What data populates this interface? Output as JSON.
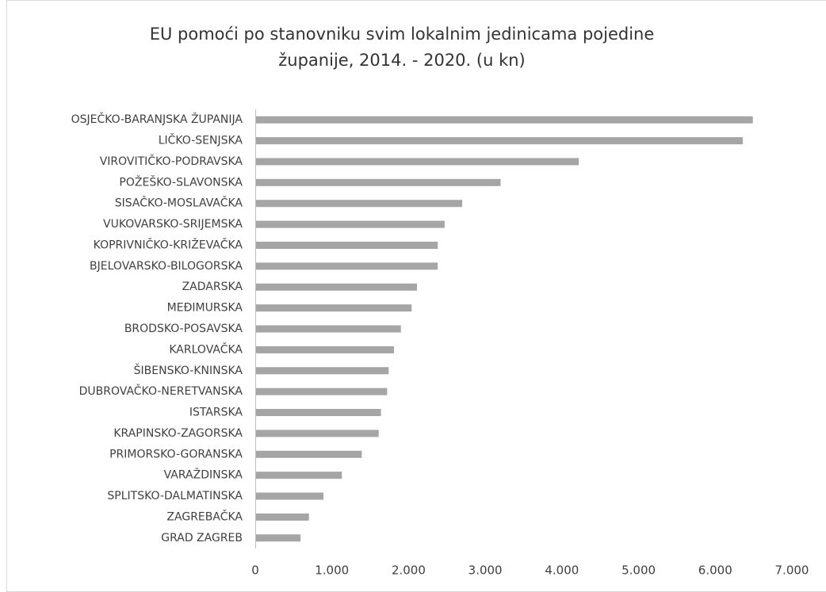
{
  "chart_data": {
    "type": "bar",
    "orientation": "horizontal",
    "title": [
      "EU pomoći po stanovniku svim lokalnim jedinicama pojedine",
      "županije, 2014. - 2020. (u kn)"
    ],
    "categories": [
      "OSJEČKO-BARANJSKA ŽUPANIJA",
      "LIČKO-SENJSKA",
      "VIROVITIČKO-PODRAVSKA",
      "POŽEŠKO-SLAVONSKA",
      "SISAČKO-MOSLAVAČKA",
      "VUKOVARSKO-SRIJEMSKA",
      "KOPRIVNIČKO-KRIŽEVAČKA",
      "BJELOVARSKO-BILOGORSKA",
      "ZADARSKA",
      "MEĐIMURSKA",
      "BRODSKO-POSAVSKA",
      "KARLOVAČKA",
      "ŠIBENSKO-KNINSKA",
      "DUBROVAČKO-NERETVANSKA",
      "ISTARSKA",
      "KRAPINSKO-ZAGORSKA",
      "PRIMORSKO-GORANSKA",
      "VARAŽDINSKA",
      "SPLITSKO-DALMATINSKA",
      "ZAGREBAČKA",
      "GRAD ZAGREB"
    ],
    "values": [
      6490,
      6360,
      4220,
      3200,
      2700,
      2470,
      2380,
      2380,
      2110,
      2040,
      1900,
      1810,
      1740,
      1720,
      1640,
      1610,
      1390,
      1130,
      890,
      700,
      590
    ],
    "color": "#a5a5a5",
    "xlim": [
      0,
      7000
    ],
    "xticks": [
      0,
      {
        "value": 1000,
        "label": "1.000"
      },
      {
        "value": 2000,
        "label": "2.000"
      },
      {
        "value": 3000,
        "label": "3.000"
      },
      {
        "value": 4000,
        "label": "4.000"
      },
      {
        "value": 5000,
        "label": "5.000"
      },
      {
        "value": 6000,
        "label": "6.000"
      },
      {
        "value": 7000,
        "label": "7.000"
      }
    ],
    "grid": false
  }
}
